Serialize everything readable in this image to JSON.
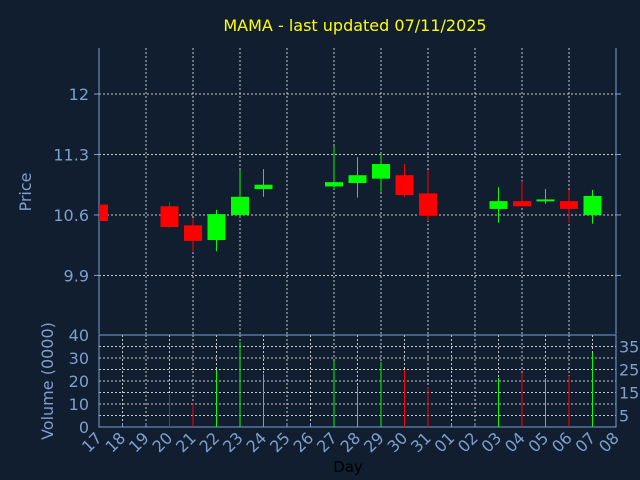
{
  "chart_data": [
    {
      "type": "candlestick",
      "title": "MAMA - last updated 07/11/2025",
      "ylabel": "Price",
      "ylim": [
        9.4,
        12.6
      ],
      "yticks": [
        "12",
        "11.3",
        "10.6",
        "9.9"
      ],
      "grid": true,
      "colors": {
        "up": "#00ff00",
        "down": "#ff0000",
        "background": "#111e30",
        "axis": "#7f9fcf",
        "title": "#ffff00"
      },
      "categories": [
        "17",
        "18",
        "19",
        "20",
        "21",
        "22",
        "23",
        "24",
        "25",
        "26",
        "27",
        "28",
        "29",
        "30",
        "31",
        "01",
        "02",
        "03",
        "04",
        "05",
        "06",
        "07",
        "08"
      ],
      "candles": [
        {
          "day": "17",
          "open": 10.72,
          "high": 10.72,
          "low": 10.53,
          "close": 10.53
        },
        {
          "day": "20",
          "open": 10.7,
          "high": 10.75,
          "low": 10.45,
          "close": 10.46
        },
        {
          "day": "21",
          "open": 10.48,
          "high": 10.56,
          "low": 10.18,
          "close": 10.3
        },
        {
          "day": "22",
          "open": 10.31,
          "high": 10.66,
          "low": 10.18,
          "close": 10.61
        },
        {
          "day": "23",
          "open": 10.6,
          "high": 11.12,
          "low": 10.58,
          "close": 10.81
        },
        {
          "day": "24",
          "open": 10.9,
          "high": 11.13,
          "low": 10.81,
          "close": 10.95
        },
        {
          "day": "27",
          "open": 10.93,
          "high": 11.4,
          "low": 10.9,
          "close": 10.98
        },
        {
          "day": "28",
          "open": 10.97,
          "high": 11.27,
          "low": 10.8,
          "close": 11.06
        },
        {
          "day": "29",
          "open": 11.02,
          "high": 11.31,
          "low": 10.87,
          "close": 11.19
        },
        {
          "day": "30",
          "open": 11.06,
          "high": 11.19,
          "low": 10.81,
          "close": 10.83
        },
        {
          "day": "31",
          "open": 10.85,
          "high": 11.12,
          "low": 10.53,
          "close": 10.59
        },
        {
          "day": "03",
          "open": 10.67,
          "high": 10.92,
          "low": 10.51,
          "close": 10.76
        },
        {
          "day": "04",
          "open": 10.76,
          "high": 10.99,
          "low": 10.7,
          "close": 10.7
        },
        {
          "day": "05",
          "open": 10.76,
          "high": 10.9,
          "low": 10.73,
          "close": 10.78
        },
        {
          "day": "06",
          "open": 10.76,
          "high": 10.89,
          "low": 10.51,
          "close": 10.67
        },
        {
          "day": "07",
          "open": 10.6,
          "high": 10.89,
          "low": 10.5,
          "close": 10.82
        }
      ]
    },
    {
      "type": "bar",
      "ylabel": "Volume (0000)",
      "xlabel": "Day",
      "ylim": [
        0,
        40
      ],
      "yticks": [
        "0",
        "5",
        "10",
        "15",
        "20",
        "25",
        "30",
        "35",
        "40"
      ],
      "grid": true,
      "values": [
        {
          "day": "20",
          "volume": 14.3,
          "dir": "down"
        },
        {
          "day": "21",
          "volume": 10.3,
          "dir": "down"
        },
        {
          "day": "22",
          "volume": 24.8,
          "dir": "up"
        },
        {
          "day": "23",
          "volume": 37.0,
          "dir": "up"
        },
        {
          "day": "24",
          "volume": 23.0,
          "dir": "up"
        },
        {
          "day": "27",
          "volume": 28.8,
          "dir": "up"
        },
        {
          "day": "28",
          "volume": 18.0,
          "dir": "up"
        },
        {
          "day": "29",
          "volume": 28.3,
          "dir": "up"
        },
        {
          "day": "30",
          "volume": 24.8,
          "dir": "down"
        },
        {
          "day": "31",
          "volume": 17.3,
          "dir": "down"
        },
        {
          "day": "03",
          "volume": 21.4,
          "dir": "up"
        },
        {
          "day": "04",
          "volume": 23.6,
          "dir": "down"
        },
        {
          "day": "05",
          "volume": 21.2,
          "dir": "up"
        },
        {
          "day": "06",
          "volume": 22.3,
          "dir": "down"
        },
        {
          "day": "07",
          "volume": 32.3,
          "dir": "up"
        }
      ]
    }
  ]
}
